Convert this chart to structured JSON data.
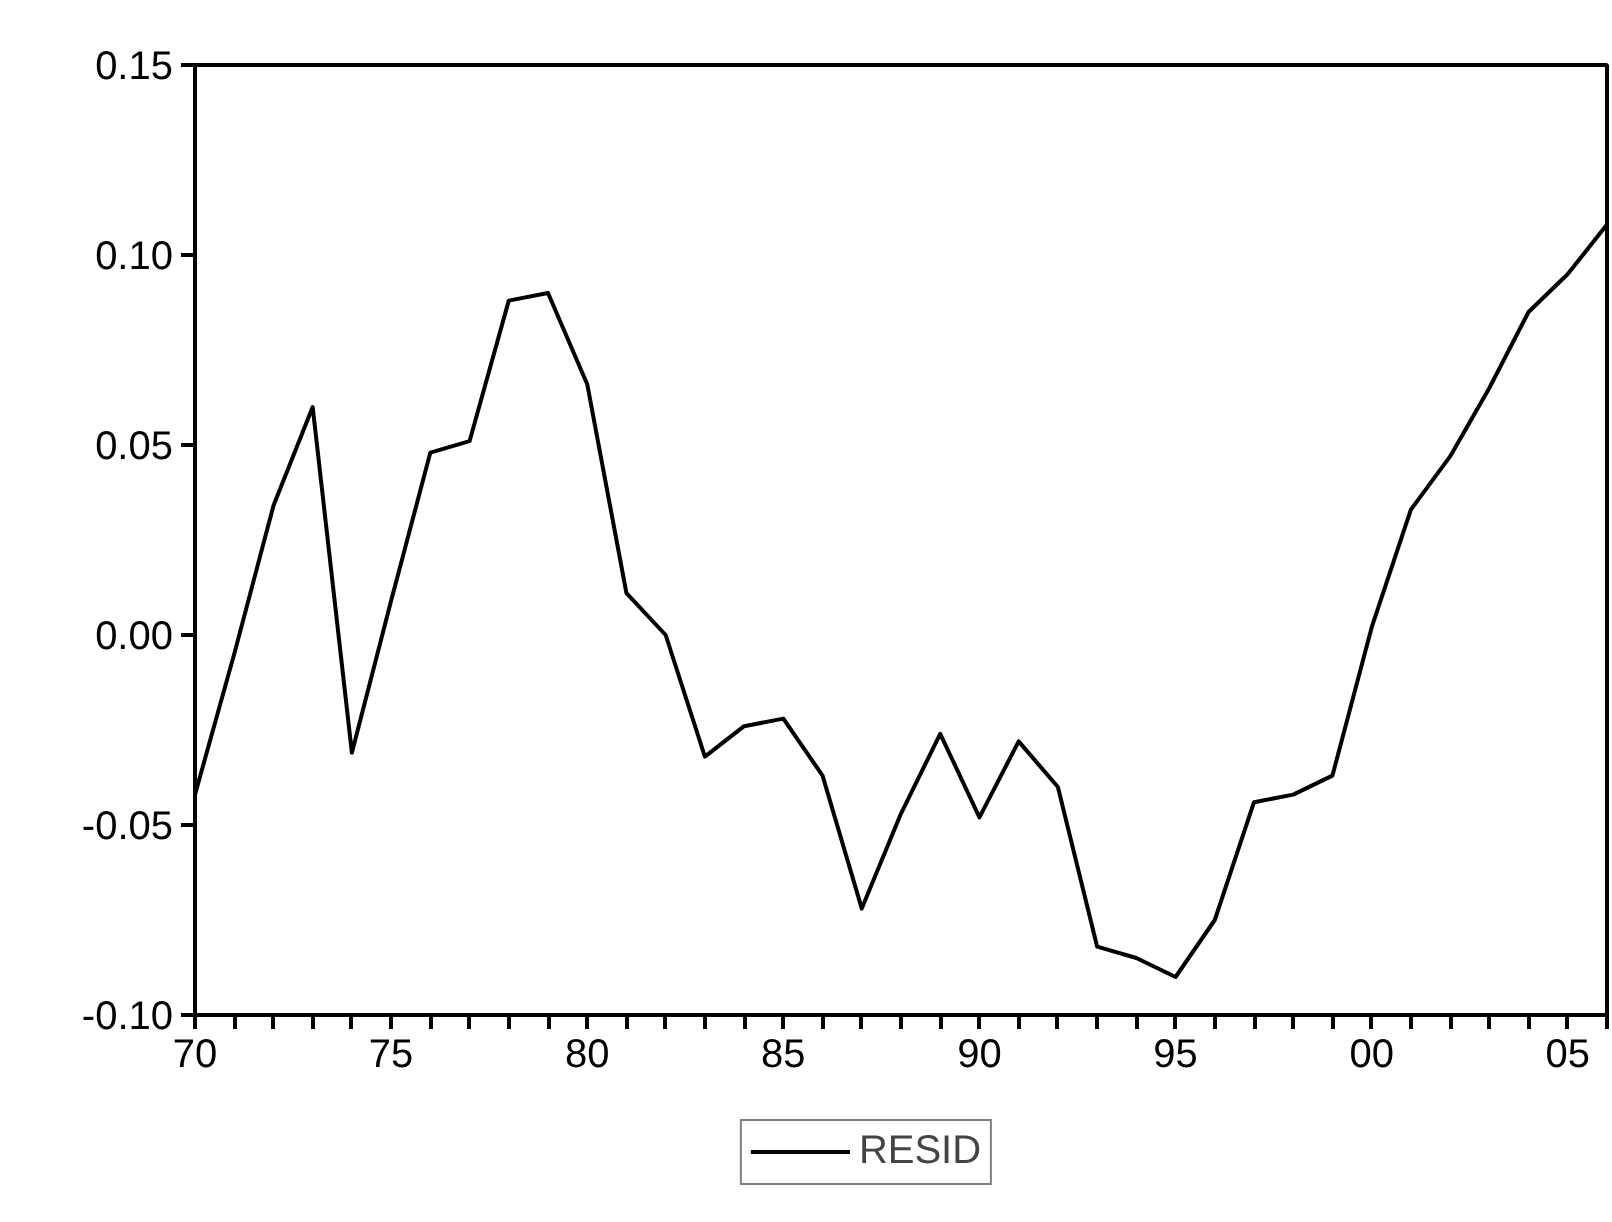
{
  "chart_data": {
    "type": "line",
    "x": [
      1970,
      1971,
      1972,
      1973,
      1974,
      1975,
      1976,
      1977,
      1978,
      1979,
      1980,
      1981,
      1982,
      1983,
      1984,
      1985,
      1986,
      1987,
      1988,
      1989,
      1990,
      1991,
      1992,
      1993,
      1994,
      1995,
      1996,
      1997,
      1998,
      1999,
      2000,
      2001,
      2002,
      2003,
      2004,
      2005,
      2006
    ],
    "series": [
      {
        "name": "RESID",
        "color": "#000000",
        "values": [
          -0.042,
          -0.005,
          0.034,
          0.06,
          -0.031,
          0.009,
          0.048,
          0.051,
          0.088,
          0.09,
          0.066,
          0.011,
          0.0,
          -0.032,
          -0.024,
          -0.022,
          -0.037,
          -0.072,
          -0.047,
          -0.026,
          -0.048,
          -0.028,
          -0.04,
          -0.082,
          -0.085,
          -0.09,
          -0.075,
          -0.044,
          -0.042,
          -0.037,
          0.002,
          0.033,
          0.047,
          0.065,
          0.085,
          0.095,
          0.108
        ]
      }
    ],
    "xlim": [
      1970,
      2006
    ],
    "ylim": [
      -0.1,
      0.15
    ],
    "xticks": [
      {
        "value": 1970,
        "label": "70"
      },
      {
        "value": 1971,
        "label": null
      },
      {
        "value": 1972,
        "label": null
      },
      {
        "value": 1973,
        "label": null
      },
      {
        "value": 1974,
        "label": null
      },
      {
        "value": 1975,
        "label": "75"
      },
      {
        "value": 1976,
        "label": null
      },
      {
        "value": 1977,
        "label": null
      },
      {
        "value": 1978,
        "label": null
      },
      {
        "value": 1979,
        "label": null
      },
      {
        "value": 1980,
        "label": "80"
      },
      {
        "value": 1981,
        "label": null
      },
      {
        "value": 1982,
        "label": null
      },
      {
        "value": 1983,
        "label": null
      },
      {
        "value": 1984,
        "label": null
      },
      {
        "value": 1985,
        "label": "85"
      },
      {
        "value": 1986,
        "label": null
      },
      {
        "value": 1987,
        "label": null
      },
      {
        "value": 1988,
        "label": null
      },
      {
        "value": 1989,
        "label": null
      },
      {
        "value": 1990,
        "label": "90"
      },
      {
        "value": 1991,
        "label": null
      },
      {
        "value": 1992,
        "label": null
      },
      {
        "value": 1993,
        "label": null
      },
      {
        "value": 1994,
        "label": null
      },
      {
        "value": 1995,
        "label": "95"
      },
      {
        "value": 1996,
        "label": null
      },
      {
        "value": 1997,
        "label": null
      },
      {
        "value": 1998,
        "label": null
      },
      {
        "value": 1999,
        "label": null
      },
      {
        "value": 2000,
        "label": "00"
      },
      {
        "value": 2001,
        "label": null
      },
      {
        "value": 2002,
        "label": null
      },
      {
        "value": 2003,
        "label": null
      },
      {
        "value": 2004,
        "label": null
      },
      {
        "value": 2005,
        "label": "05"
      },
      {
        "value": 2006,
        "label": null
      }
    ],
    "yticks": [
      {
        "value": -0.1,
        "label": "-0.10"
      },
      {
        "value": -0.05,
        "label": "-0.05"
      },
      {
        "value": 0.0,
        "label": "0.00"
      },
      {
        "value": 0.05,
        "label": "0.05"
      },
      {
        "value": 0.1,
        "label": "0.10"
      },
      {
        "value": 0.15,
        "label": "0.15"
      }
    ],
    "grid": false,
    "legend": "bottom",
    "marker": "none",
    "line_style": "solid"
  }
}
